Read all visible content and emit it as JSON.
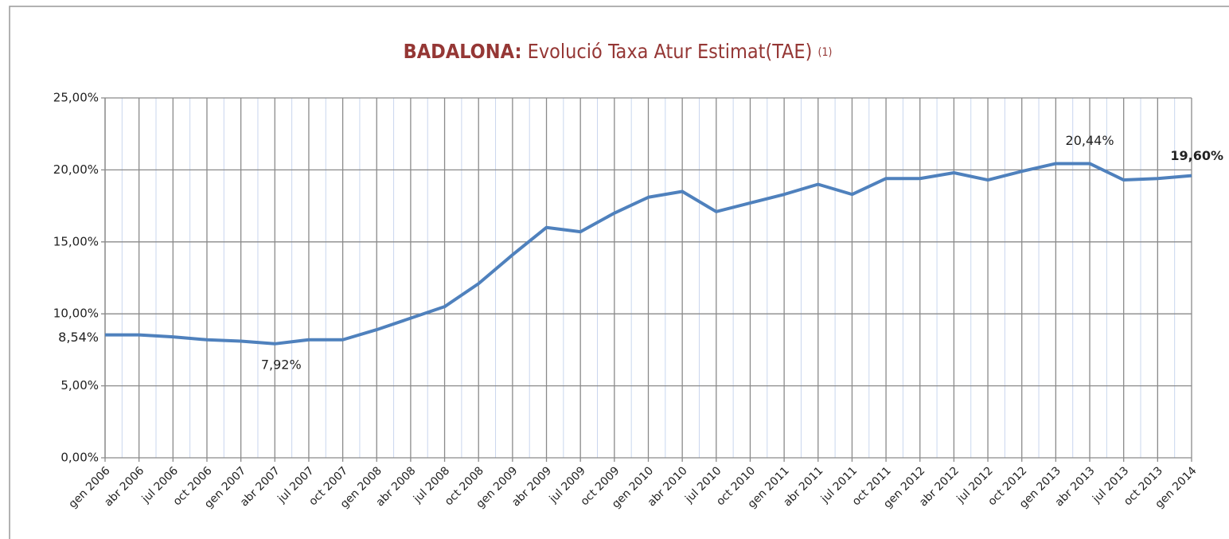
{
  "chart_data": {
    "type": "line",
    "title": {
      "bold": "BADALONA:",
      "text": "Evolució Taxa Atur Estimat(TAE)",
      "note": "(1)"
    },
    "categories": [
      "gen 2006",
      "abr 2006",
      "jul 2006",
      "oct 2006",
      "gen 2007",
      "abr 2007",
      "jul 2007",
      "oct 2007",
      "gen 2008",
      "abr 2008",
      "jul 2008",
      "oct 2008",
      "gen 2009",
      "abr 2009",
      "jul 2009",
      "oct 2009",
      "gen 2010",
      "abr 2010",
      "jul 2010",
      "oct 2010",
      "gen 2011",
      "abr 2011",
      "jul 2011",
      "oct 2011",
      "gen 2012",
      "abr 2012",
      "jul 2012",
      "oct 2012",
      "gen 2013",
      "abr 2013",
      "jul 2013",
      "oct 2013",
      "gen 2014"
    ],
    "values": [
      8.54,
      8.54,
      8.4,
      8.2,
      8.1,
      7.92,
      8.2,
      8.2,
      8.9,
      9.7,
      10.5,
      12.1,
      14.1,
      16.0,
      15.7,
      17.0,
      18.1,
      18.5,
      17.1,
      17.7,
      18.3,
      19.0,
      18.3,
      19.4,
      19.4,
      19.8,
      19.3,
      19.9,
      20.44,
      20.44,
      19.3,
      19.4,
      19.6
    ],
    "value_labels": [
      "8,54%",
      null,
      null,
      null,
      null,
      "7,92%",
      null,
      null,
      null,
      null,
      null,
      null,
      null,
      null,
      null,
      null,
      null,
      null,
      null,
      null,
      null,
      null,
      null,
      null,
      null,
      null,
      null,
      null,
      null,
      "20,44%",
      null,
      null,
      "19,60%"
    ],
    "color": "#4f81bd",
    "ylim": [
      0,
      25
    ],
    "yticks": [
      {
        "value": 0,
        "label": "0,00%"
      },
      {
        "value": 5,
        "label": "5,00%"
      },
      {
        "value": 10,
        "label": "10,00%"
      },
      {
        "value": 15,
        "label": "15,00%"
      },
      {
        "value": 20,
        "label": "20,00%"
      },
      {
        "value": 25,
        "label": "25,00%"
      }
    ],
    "grid": true
  }
}
